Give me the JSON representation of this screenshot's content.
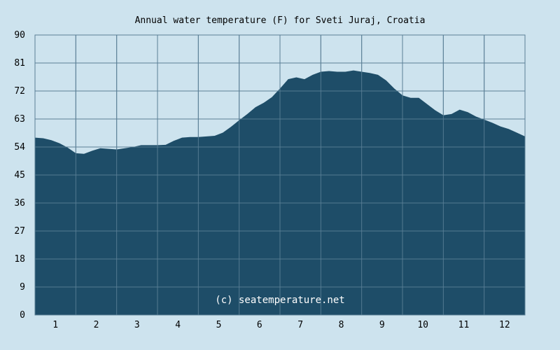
{
  "chart_data": {
    "type": "area",
    "title": "Annual water temperature (F) for Sveti Juraj, Croatia",
    "watermark": "(c) seatemperature.net",
    "xlabel": "",
    "ylabel": "",
    "ylim": [
      0,
      90
    ],
    "xlim": [
      0.5,
      12.5
    ],
    "y_ticks": [
      "0",
      "9",
      "18",
      "27",
      "36",
      "45",
      "54",
      "63",
      "72",
      "81",
      "90"
    ],
    "x_ticks": [
      "1",
      "2",
      "3",
      "4",
      "5",
      "6",
      "7",
      "8",
      "9",
      "10",
      "11",
      "12"
    ],
    "grid": true,
    "colors": {
      "background": "#cde3ee",
      "plot_background": "#cde3ee",
      "fill": "#1e4d68",
      "grid": "#5a7f96"
    },
    "x": [
      0.5,
      0.7,
      0.9,
      1.1,
      1.3,
      1.5,
      1.7,
      1.9,
      2.1,
      2.3,
      2.5,
      2.7,
      2.9,
      3.1,
      3.3,
      3.5,
      3.7,
      3.9,
      4.1,
      4.3,
      4.5,
      4.7,
      4.9,
      5.1,
      5.3,
      5.5,
      5.7,
      5.9,
      6.1,
      6.3,
      6.5,
      6.7,
      6.9,
      7.1,
      7.3,
      7.5,
      7.7,
      7.9,
      8.1,
      8.3,
      8.5,
      8.7,
      8.9,
      9.1,
      9.3,
      9.5,
      9.7,
      9.9,
      10.1,
      10.3,
      10.5,
      10.7,
      10.9,
      11.1,
      11.3,
      11.5,
      11.7,
      11.9,
      12.1,
      12.3,
      12.5
    ],
    "values": [
      57.0,
      56.8,
      56.2,
      55.2,
      53.8,
      52.0,
      51.8,
      52.8,
      53.6,
      53.4,
      53.2,
      53.6,
      54.0,
      54.6,
      54.6,
      54.6,
      54.7,
      56.0,
      57.0,
      57.2,
      57.2,
      57.4,
      57.6,
      58.6,
      60.5,
      62.6,
      64.6,
      66.8,
      68.2,
      70.0,
      72.8,
      75.8,
      76.4,
      75.8,
      77.2,
      78.2,
      78.4,
      78.2,
      78.2,
      78.6,
      78.2,
      77.8,
      77.2,
      75.4,
      72.8,
      70.6,
      69.8,
      69.8,
      67.8,
      65.8,
      64.2,
      64.6,
      66.0,
      65.2,
      63.8,
      62.8,
      61.8,
      60.6,
      59.8,
      58.6,
      57.4
    ]
  }
}
